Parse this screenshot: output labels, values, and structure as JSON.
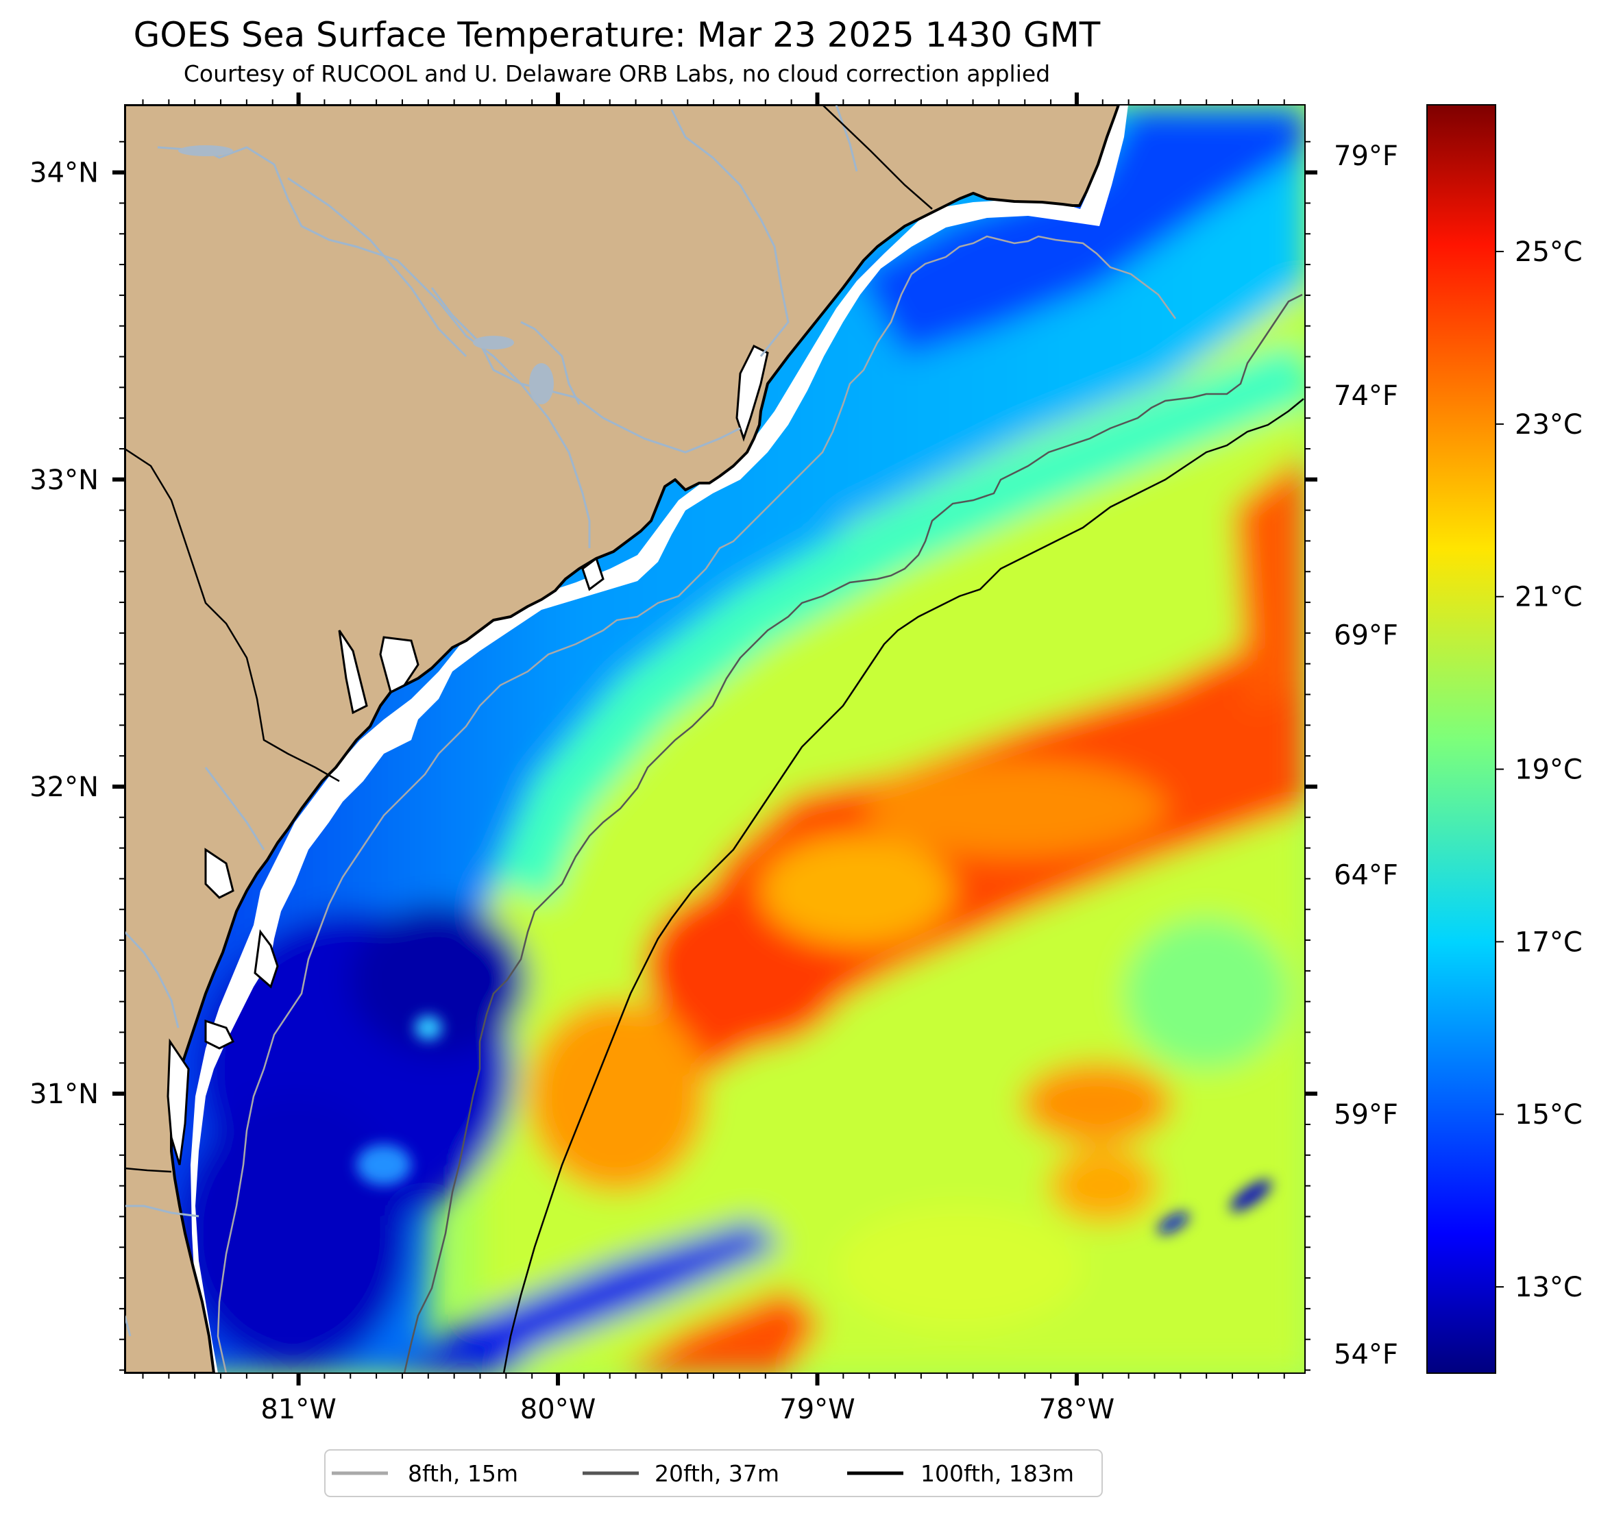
{
  "title": "GOES Sea Surface Temperature: Mar 23 2025 1430 GMT",
  "subtitle": "Courtesy of RUCOOL and U. Delaware ORB Labs, no cloud correction applied",
  "map": {
    "lon_range": [
      -81.67,
      -77.12
    ],
    "lat_range": [
      30.09,
      34.22
    ],
    "lon_ticks": [
      {
        "value": -81,
        "label": "81°W"
      },
      {
        "value": -80,
        "label": "80°W"
      },
      {
        "value": -79,
        "label": "79°W"
      },
      {
        "value": -78,
        "label": "78°W"
      }
    ],
    "lat_ticks": [
      {
        "value": 34,
        "label": "34°N"
      },
      {
        "value": 33,
        "label": "33°N"
      },
      {
        "value": 32,
        "label": "32°N"
      },
      {
        "value": 31,
        "label": "31°N"
      }
    ],
    "fahrenheit_ticks": [
      {
        "value": 79,
        "label": "79°F"
      },
      {
        "value": 74,
        "label": "74°F"
      },
      {
        "value": 69,
        "label": "69°F"
      },
      {
        "value": 64,
        "label": "64°F"
      },
      {
        "value": 59,
        "label": "59°F"
      },
      {
        "value": 54,
        "label": "54°F"
      }
    ],
    "land_color": "#d2b48c",
    "river_color": "#9fb6cd"
  },
  "colorbar": {
    "range_c": [
      12.0,
      26.7
    ],
    "ticks": [
      {
        "value": 25,
        "label": "25°C"
      },
      {
        "value": 23,
        "label": "23°C"
      },
      {
        "value": 21,
        "label": "21°C"
      },
      {
        "value": 19,
        "label": "19°C"
      },
      {
        "value": 17,
        "label": "17°C"
      },
      {
        "value": 15,
        "label": "15°C"
      },
      {
        "value": 13,
        "label": "13°C"
      }
    ],
    "colormap": "jet"
  },
  "legend": {
    "items": [
      {
        "label": "8fth, 15m",
        "color": "#a9a9a9"
      },
      {
        "label": "20fth, 37m",
        "color": "#555555"
      },
      {
        "label": "100fth, 183m",
        "color": "#000000"
      }
    ]
  }
}
